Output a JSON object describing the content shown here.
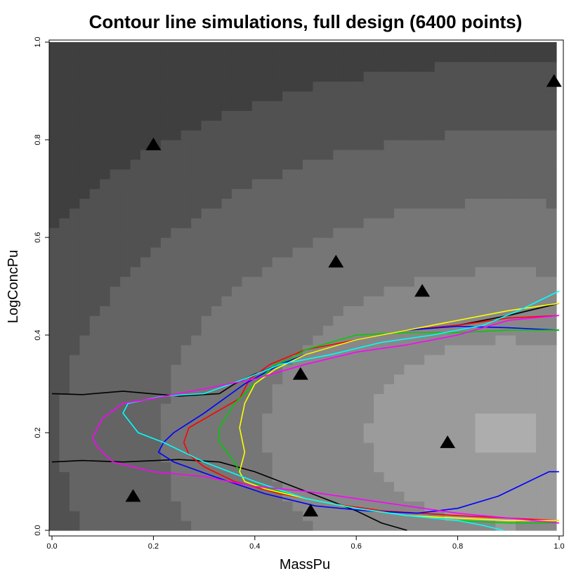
{
  "chart_data": {
    "type": "scatter",
    "title": "Contour line simulations, full design (6400 points)",
    "xlabel": "MassPu",
    "ylabel": "LogConcPu",
    "xlim": [
      0,
      1
    ],
    "ylim": [
      0,
      1
    ],
    "x_ticks": [
      "0.0",
      "0.2",
      "0.4",
      "0.6",
      "0.8",
      "1.0"
    ],
    "y_ticks": [
      "0.0",
      "0.2",
      "0.4",
      "0.6",
      "0.8",
      "1.0"
    ],
    "grid": false,
    "legend": "none",
    "background": "grayscale heatmap of the response surface (darkest near MassPu 0-0.4, LogConcPu 0.7-0.9; lightest near MassPu 0.9, LogConcPu 0.2)",
    "design_points": {
      "marker": "filled triangle",
      "color": "#000000",
      "x": [
        0.2,
        0.99,
        0.56,
        0.73,
        0.49,
        0.78,
        0.16,
        0.51
      ],
      "y": [
        0.79,
        0.92,
        0.55,
        0.49,
        0.32,
        0.18,
        0.07,
        0.04
      ]
    },
    "series": [
      {
        "color": "#000000",
        "x": [
          1.0,
          0.9,
          0.8,
          0.7,
          0.6,
          0.5,
          0.45,
          0.4,
          0.36,
          0.33,
          0.25,
          0.14,
          0.06,
          0.0
        ],
        "y": [
          0.465,
          0.44,
          0.42,
          0.41,
          0.39,
          0.36,
          0.34,
          0.32,
          0.3,
          0.28,
          0.275,
          0.285,
          0.278,
          0.28
        ]
      },
      {
        "color": "#000000",
        "x": [
          0.0,
          0.06,
          0.14,
          0.25,
          0.33,
          0.4,
          0.5,
          0.6,
          0.65,
          0.7
        ],
        "y": [
          0.14,
          0.143,
          0.14,
          0.145,
          0.14,
          0.12,
          0.08,
          0.04,
          0.015,
          0.0
        ]
      },
      {
        "color": "#ff0000",
        "x": [
          1.0,
          0.9,
          0.8,
          0.7,
          0.6,
          0.5,
          0.43,
          0.39,
          0.37,
          0.32,
          0.27,
          0.26,
          0.27,
          0.3,
          0.36,
          0.45,
          0.55,
          0.65,
          0.8,
          0.9,
          1.0
        ],
        "y": [
          0.44,
          0.435,
          0.42,
          0.41,
          0.39,
          0.37,
          0.34,
          0.31,
          0.27,
          0.24,
          0.21,
          0.18,
          0.155,
          0.13,
          0.1,
          0.075,
          0.055,
          0.04,
          0.03,
          0.025,
          0.02
        ]
      },
      {
        "color": "#0000ff",
        "x": [
          1.0,
          0.9,
          0.8,
          0.7,
          0.6,
          0.5,
          0.45,
          0.38,
          0.3,
          0.24,
          0.22,
          0.21,
          0.24,
          0.32,
          0.42,
          0.52,
          0.62,
          0.72,
          0.8,
          0.88,
          0.94,
          0.98,
          1.0
        ],
        "y": [
          0.41,
          0.415,
          0.418,
          0.41,
          0.39,
          0.36,
          0.34,
          0.3,
          0.24,
          0.2,
          0.18,
          0.16,
          0.14,
          0.11,
          0.075,
          0.05,
          0.04,
          0.035,
          0.045,
          0.07,
          0.1,
          0.12,
          0.12
        ]
      },
      {
        "color": "#00cc00",
        "x": [
          1.0,
          0.9,
          0.8,
          0.7,
          0.6,
          0.5,
          0.47,
          0.44,
          0.4,
          0.36,
          0.33,
          0.33,
          0.36,
          0.38,
          0.43,
          0.5,
          0.6,
          0.7,
          0.8,
          0.9,
          1.0
        ],
        "y": [
          0.41,
          0.41,
          0.405,
          0.405,
          0.4,
          0.37,
          0.35,
          0.34,
          0.3,
          0.26,
          0.21,
          0.18,
          0.14,
          0.1,
          0.085,
          0.065,
          0.045,
          0.03,
          0.02,
          0.015,
          0.015
        ]
      },
      {
        "color": "#ffff00",
        "x": [
          1.0,
          0.9,
          0.8,
          0.7,
          0.6,
          0.5,
          0.44,
          0.4,
          0.38,
          0.37,
          0.38,
          0.37,
          0.38,
          0.42,
          0.5,
          0.6,
          0.7,
          0.8,
          0.9,
          1.0
        ],
        "y": [
          0.465,
          0.45,
          0.43,
          0.41,
          0.39,
          0.36,
          0.33,
          0.3,
          0.26,
          0.21,
          0.16,
          0.12,
          0.1,
          0.085,
          0.065,
          0.045,
          0.03,
          0.025,
          0.02,
          0.02
        ]
      },
      {
        "color": "#00ffff",
        "x": [
          1.0,
          0.92,
          0.85,
          0.75,
          0.65,
          0.55,
          0.45,
          0.38,
          0.3,
          0.22,
          0.15,
          0.14,
          0.17,
          0.22,
          0.3,
          0.4,
          0.5,
          0.6,
          0.7,
          0.8,
          0.85,
          0.89
        ],
        "y": [
          0.49,
          0.45,
          0.42,
          0.4,
          0.385,
          0.36,
          0.34,
          0.31,
          0.28,
          0.275,
          0.26,
          0.24,
          0.2,
          0.18,
          0.14,
          0.1,
          0.065,
          0.045,
          0.03,
          0.02,
          0.01,
          0.0
        ]
      },
      {
        "color": "#ff00ff",
        "x": [
          1.0,
          0.9,
          0.8,
          0.7,
          0.6,
          0.5,
          0.4,
          0.3,
          0.2,
          0.14,
          0.1,
          0.08,
          0.09,
          0.12,
          0.2,
          0.3,
          0.4,
          0.5,
          0.6,
          0.7,
          0.8,
          0.9,
          1.0
        ],
        "y": [
          0.44,
          0.43,
          0.4,
          0.38,
          0.365,
          0.34,
          0.31,
          0.29,
          0.27,
          0.26,
          0.23,
          0.19,
          0.17,
          0.14,
          0.12,
          0.11,
          0.09,
          0.08,
          0.065,
          0.05,
          0.035,
          0.025,
          0.015
        ]
      }
    ]
  }
}
